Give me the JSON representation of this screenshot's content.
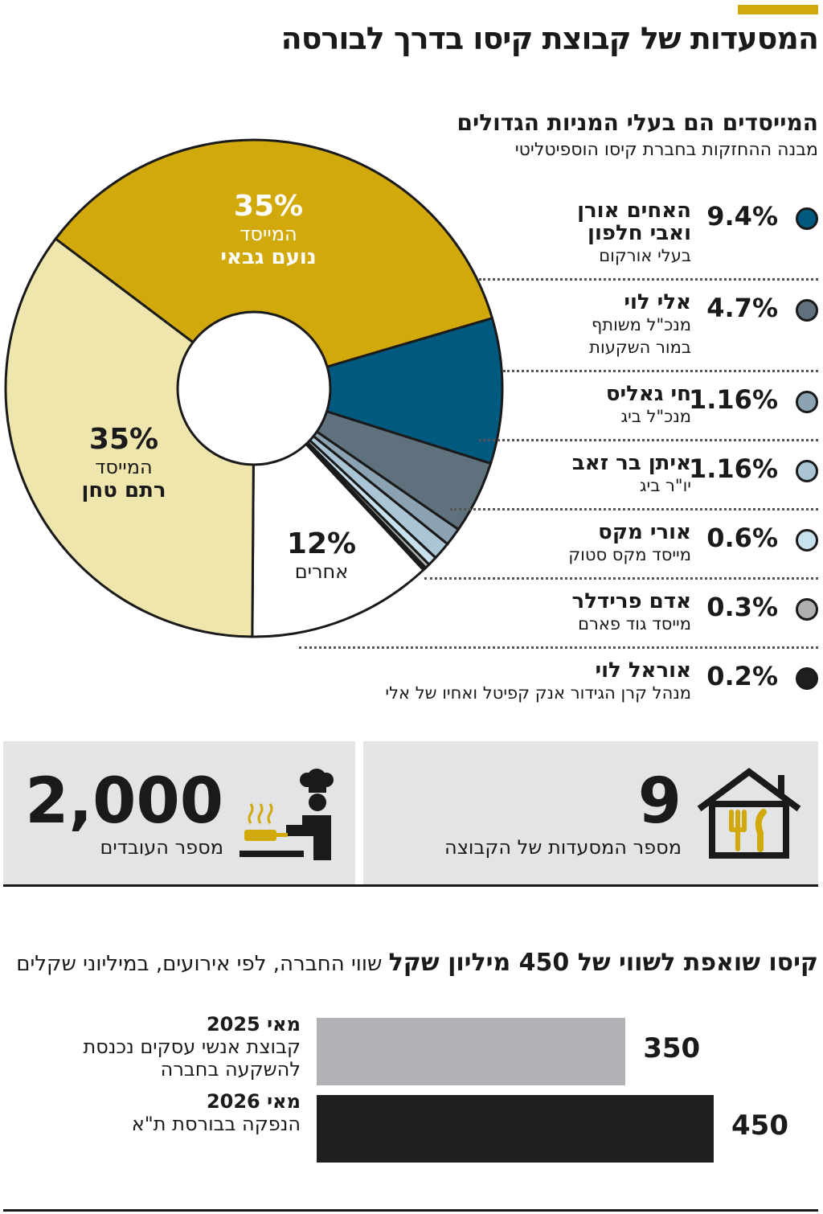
{
  "title": "המסעדות של קבוצת קיסו בדרך לבורסה",
  "accent": "#d1a90a",
  "ownership": {
    "title": "המייסדים הם בעלי המניות הגדולים",
    "subtitle": "מבנה ההחזקות בחברת קיסו הוספיטליטי"
  },
  "chart_data": [
    {
      "type": "pie",
      "donut": true,
      "slices": [
        {
          "name": "נועם גבאי",
          "role": "המייסד",
          "value": 35,
          "label": "35%",
          "color": "#d1a90a"
        },
        {
          "name": "האחים אורן ואבי חלפון",
          "role": "בעלי אורקום",
          "value": 9.4,
          "label": "9.4%",
          "color": "#005a80"
        },
        {
          "name": "אלי לוי",
          "role": "מנכ\"ל משותף במור השקעות",
          "value": 4.7,
          "label": "4.7%",
          "color": "#5f717d"
        },
        {
          "name": "חי גאליס",
          "role": "מנכ\"ל ביג",
          "value": 1.16,
          "label": "1.16%",
          "color": "#8aa2b1"
        },
        {
          "name": "איתן בר זאב",
          "role": "יו\"ר ביג",
          "value": 1.16,
          "label": "1.16%",
          "color": "#a9c5d6"
        },
        {
          "name": "אורי מקס",
          "role": "מייסד מקס סטוק",
          "value": 0.6,
          "label": "0.6%",
          "color": "#c8e1ef"
        },
        {
          "name": "אדם פרידלר",
          "role": "מייסד גוד פארם",
          "value": 0.3,
          "label": "0.3%",
          "color": "#b0b0b0"
        },
        {
          "name": "אוראל לוי",
          "role": "מנהל קרן הגידור אנק קפיטל ואחיו של אלי",
          "value": 0.2,
          "label": "0.2%",
          "color": "#1f1f1f"
        },
        {
          "name": "אחרים",
          "role": "",
          "value": 12,
          "label": "12%",
          "color": "#ffffff"
        },
        {
          "name": "רתם טחן",
          "role": "המייסד",
          "value": 35,
          "label": "35%",
          "color": "#efe6ad"
        }
      ]
    },
    {
      "type": "bar",
      "orientation": "horizontal",
      "title": "קיסו שואפת לשווי של 450 מיליון שקל",
      "subtitle": "שווי החברה, לפי אירועים, במיליוני שקלים",
      "categories": [
        {
          "date": "מאי 2025",
          "desc": "קבוצת אנשי עסקים נכנסת להשקעה בחברה"
        },
        {
          "date": "מאי 2026",
          "desc": "הנפקה בבורסת ת\"א"
        }
      ],
      "values": [
        350,
        450
      ],
      "colors": [
        "#b1b2b5",
        "#1f1f1f"
      ]
    }
  ],
  "stats": {
    "restaurants": {
      "value": "9",
      "label": "מספר המסעדות של הקבוצה",
      "icon": "house-cutlery-icon"
    },
    "employees": {
      "value": "2,000",
      "label": "מספר העובדים",
      "icon": "chef-icon"
    }
  }
}
